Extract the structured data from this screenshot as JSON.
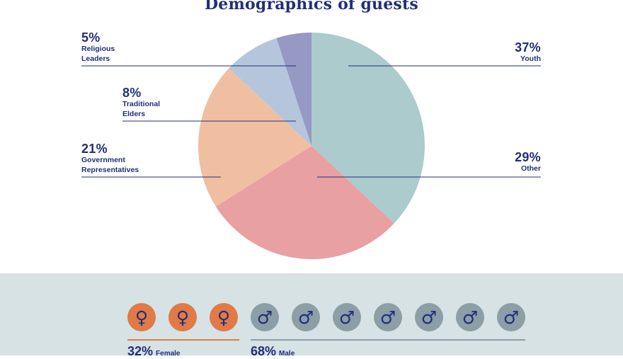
{
  "title": "Demographics of guests",
  "chart_data": {
    "type": "pie",
    "title": "Demographics of guests",
    "slices": [
      {
        "label": "Youth",
        "value": 37,
        "display": "37%",
        "color": "#abcbcd"
      },
      {
        "label": "Other",
        "value": 29,
        "display": "29%",
        "color": "#e8a0a2"
      },
      {
        "label": "Government Representatives",
        "value": 21,
        "display": "21%",
        "color": "#f0bfa2"
      },
      {
        "label": "Traditional Elders",
        "value": 8,
        "display": "8%",
        "color": "#b5c5dc"
      },
      {
        "label": "Religious Leaders",
        "value": 5,
        "display": "5%",
        "color": "#9599c3"
      }
    ],
    "label_lines": {
      "Youth": [
        "Youth"
      ],
      "Other": [
        "Other"
      ],
      "Government Representatives": [
        "Government",
        "Representatives"
      ],
      "Traditional Elders": [
        "Traditional",
        "Elders"
      ],
      "Religious Leaders": [
        "Religious",
        "Leaders"
      ]
    }
  },
  "gender": {
    "female": {
      "count": 3,
      "percent": "32%",
      "label": "Female",
      "color": "#e07a47"
    },
    "male": {
      "count": 7,
      "percent": "68%",
      "label": "Male",
      "color": "#8c9ea6"
    }
  },
  "colors": {
    "text": "#232e7a",
    "bottom_bg": "#d6e2e4"
  }
}
